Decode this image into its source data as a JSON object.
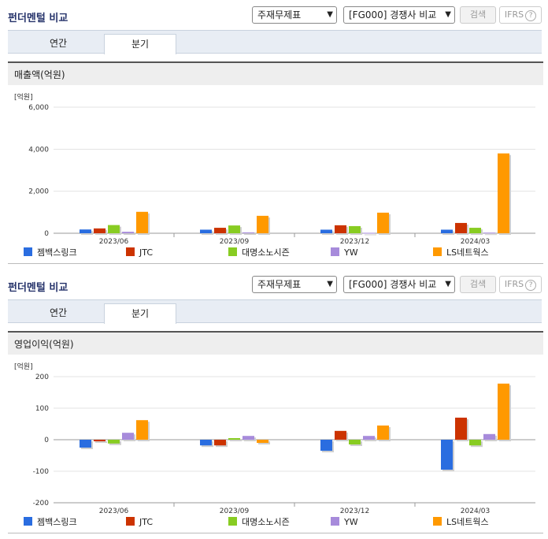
{
  "panels": [
    {
      "title": "펀더멘털 비교",
      "select1": "주재무제표",
      "select2": "[FG000] 경쟁사 비교",
      "search_button": "검색",
      "ifrs_label": "IFRS",
      "help_icon": "?",
      "tabs": [
        "연간",
        "분기"
      ],
      "active_tab": "분기",
      "subtitle": "매출액(억원)"
    },
    {
      "title": "펀더멘털 비교",
      "select1": "주재무제표",
      "select2": "[FG000] 경쟁사 비교",
      "search_button": "검색",
      "ifrs_label": "IFRS",
      "help_icon": "?",
      "tabs": [
        "연간",
        "분기"
      ],
      "active_tab": "분기",
      "subtitle": "영업이익(억원)"
    }
  ],
  "chart_data": [
    {
      "type": "bar",
      "title": "매출액(억원)",
      "ylabel": "[억원]",
      "ylim": [
        0,
        6000
      ],
      "yticks": [
        "6,000",
        "4,000",
        "2,000",
        "0"
      ],
      "yticks_values": [
        6000,
        4000,
        2000,
        0
      ],
      "categories": [
        "2023/06",
        "2023/09",
        "2023/12",
        "2024/03"
      ],
      "series": [
        {
          "name": "젬백스링크",
          "color": "#2a6de0",
          "values": [
            180,
            170,
            170,
            170
          ]
        },
        {
          "name": "JTC",
          "color": "#cc3300",
          "values": [
            230,
            260,
            380,
            490
          ]
        },
        {
          "name": "대명소노시즌",
          "color": "#88cc22",
          "values": [
            390,
            370,
            340,
            260
          ]
        },
        {
          "name": "YW",
          "color": "#a78bdb",
          "values": [
            70,
            40,
            20,
            30
          ]
        },
        {
          "name": "LS네트웍스",
          "color": "#ff9900",
          "values": [
            1020,
            830,
            980,
            3800
          ]
        }
      ]
    },
    {
      "type": "bar",
      "title": "영업이익(억원)",
      "ylabel": "[억원]",
      "ylim": [
        -200,
        200
      ],
      "yticks": [
        "200",
        "100",
        "0",
        "-100",
        "-200"
      ],
      "yticks_values": [
        200,
        100,
        0,
        -100,
        -200
      ],
      "categories": [
        "2023/06",
        "2023/09",
        "2023/12",
        "2024/03"
      ],
      "series": [
        {
          "name": "젬백스링크",
          "color": "#2a6de0",
          "values": [
            -25,
            -18,
            -35,
            -95
          ]
        },
        {
          "name": "JTC",
          "color": "#cc3300",
          "values": [
            -5,
            -18,
            28,
            70
          ]
        },
        {
          "name": "대명소노시즌",
          "color": "#88cc22",
          "values": [
            -12,
            5,
            -15,
            -18
          ]
        },
        {
          "name": "YW",
          "color": "#a78bdb",
          "values": [
            22,
            12,
            12,
            18
          ]
        },
        {
          "name": "LS네트웍스",
          "color": "#ff9900",
          "values": [
            62,
            -10,
            45,
            178
          ]
        }
      ]
    }
  ]
}
